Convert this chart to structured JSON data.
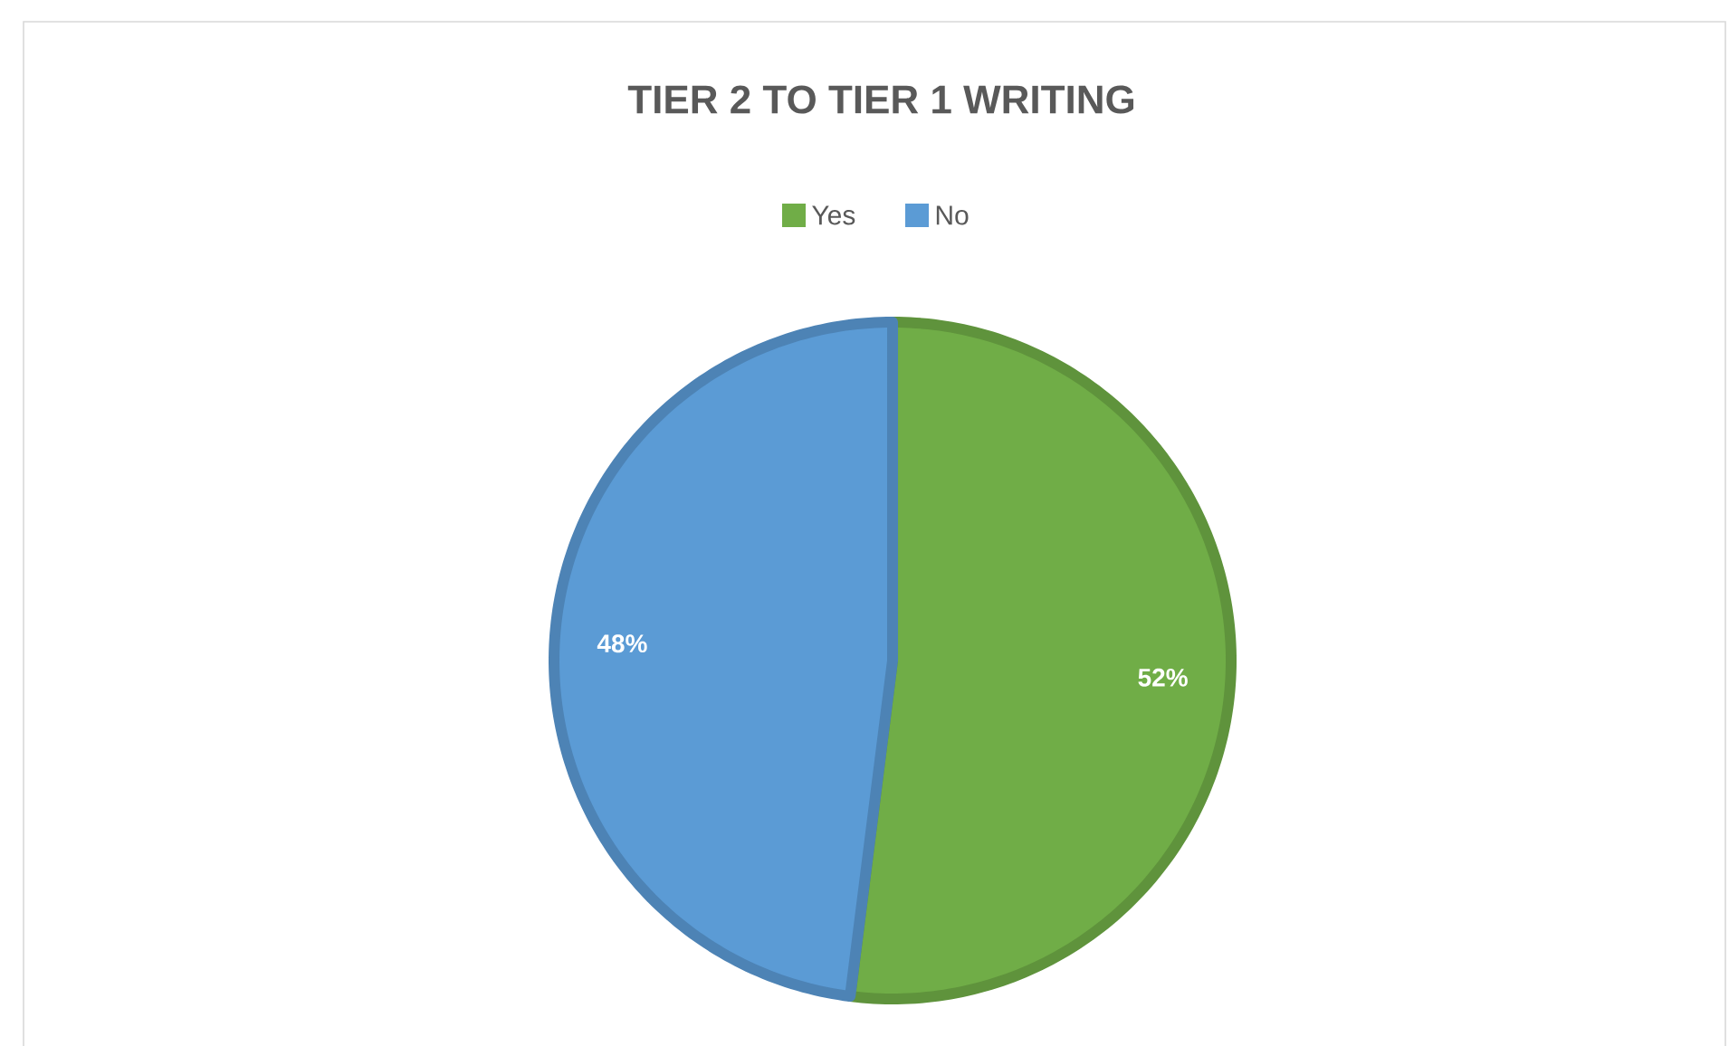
{
  "chart_data": {
    "type": "pie",
    "title": "TIER 2 TO TIER 1 WRITING",
    "categories": [
      "Yes",
      "No"
    ],
    "values": [
      52,
      48
    ],
    "colors": [
      "#70ad47",
      "#5b9bd5"
    ],
    "value_labels": [
      "52%",
      "48%"
    ],
    "legend": "top"
  }
}
